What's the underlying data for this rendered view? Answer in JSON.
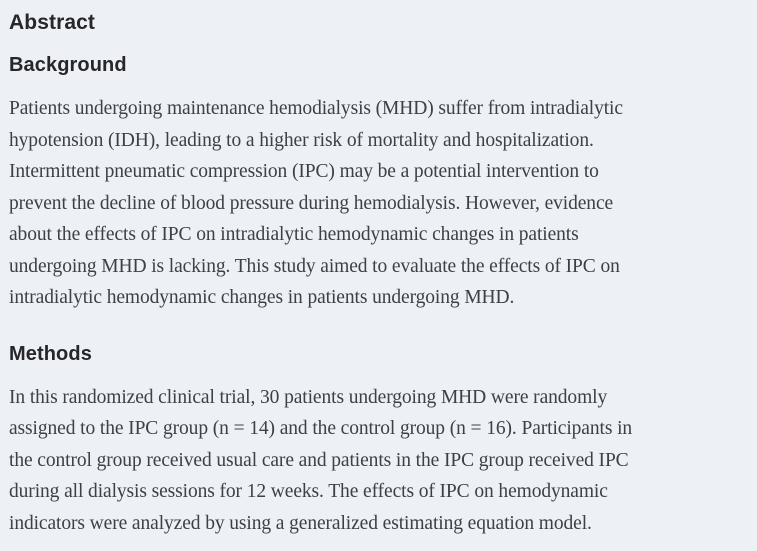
{
  "theme": {
    "background_color": "#edf0f4",
    "heading_color": "#26262b",
    "body_text_color": "#3b4049"
  },
  "abstract": {
    "title": "Abstract",
    "sections": [
      {
        "heading": "Background",
        "text": "Patients undergoing maintenance hemodialysis (MHD) suffer from intradialytic\nhypotension (IDH), leading to a higher risk of mortality and hospitalization.\nIntermittent pneumatic compression (IPC) may be a potential intervention to\nprevent the decline of blood pressure during hemodialysis. However, evidence\nabout the effects of IPC on intradialytic hemodynamic changes in patients\nundergoing MHD is lacking. This study aimed to evaluate the effects of IPC on\nintradialytic hemodynamic changes in patients undergoing MHD."
      },
      {
        "heading": "Methods",
        "text": "In this randomized clinical trial, 30 patients undergoing MHD were randomly\nassigned to the IPC group (n = 14) and the control group (n = 16). Participants in\nthe control group received usual care and patients in the IPC group received IPC\nduring all dialysis sessions for 12 weeks. The effects of IPC on hemodynamic\nindicators were analyzed by using a generalized estimating equation model."
      }
    ]
  }
}
